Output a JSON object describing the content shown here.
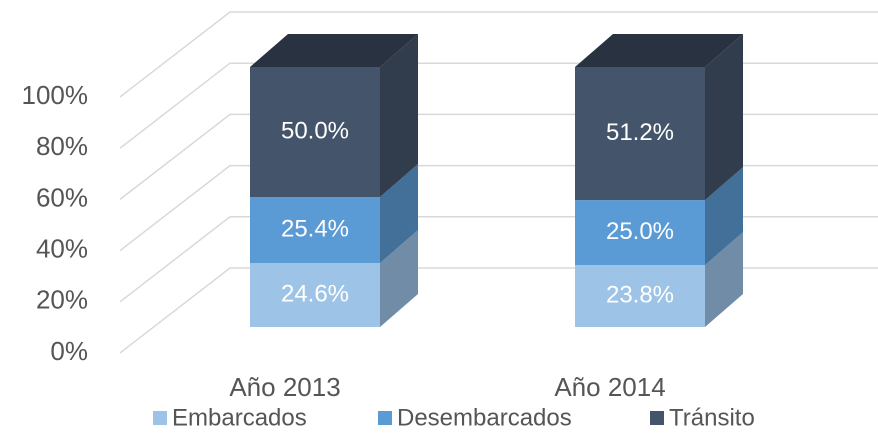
{
  "chart_data": {
    "type": "bar3d_stacked",
    "categories": [
      "Año 2013",
      "Año 2014"
    ],
    "series": [
      {
        "name": "Embarcados",
        "color": "#9dc3e6",
        "values": [
          24.6,
          23.8
        ],
        "value_labels": [
          "24.6%",
          "23.8%"
        ]
      },
      {
        "name": "Desembarcados",
        "color": "#5b9bd5",
        "values": [
          25.4,
          25.0
        ],
        "value_labels": [
          "25.4%",
          "25.0%"
        ]
      },
      {
        "name": "Tránsito",
        "color": "#44546a",
        "values": [
          50.0,
          51.2
        ],
        "value_labels": [
          "50.0%",
          "51.2%"
        ]
      }
    ],
    "ylim": [
      0,
      100
    ],
    "yticks": [
      {
        "value": 0,
        "label": "0%"
      },
      {
        "value": 20,
        "label": "20%"
      },
      {
        "value": 40,
        "label": "40%"
      },
      {
        "value": 60,
        "label": "60%"
      },
      {
        "value": 80,
        "label": "80%"
      },
      {
        "value": 100,
        "label": "100%"
      }
    ],
    "grid": true,
    "legend": "bottom"
  }
}
